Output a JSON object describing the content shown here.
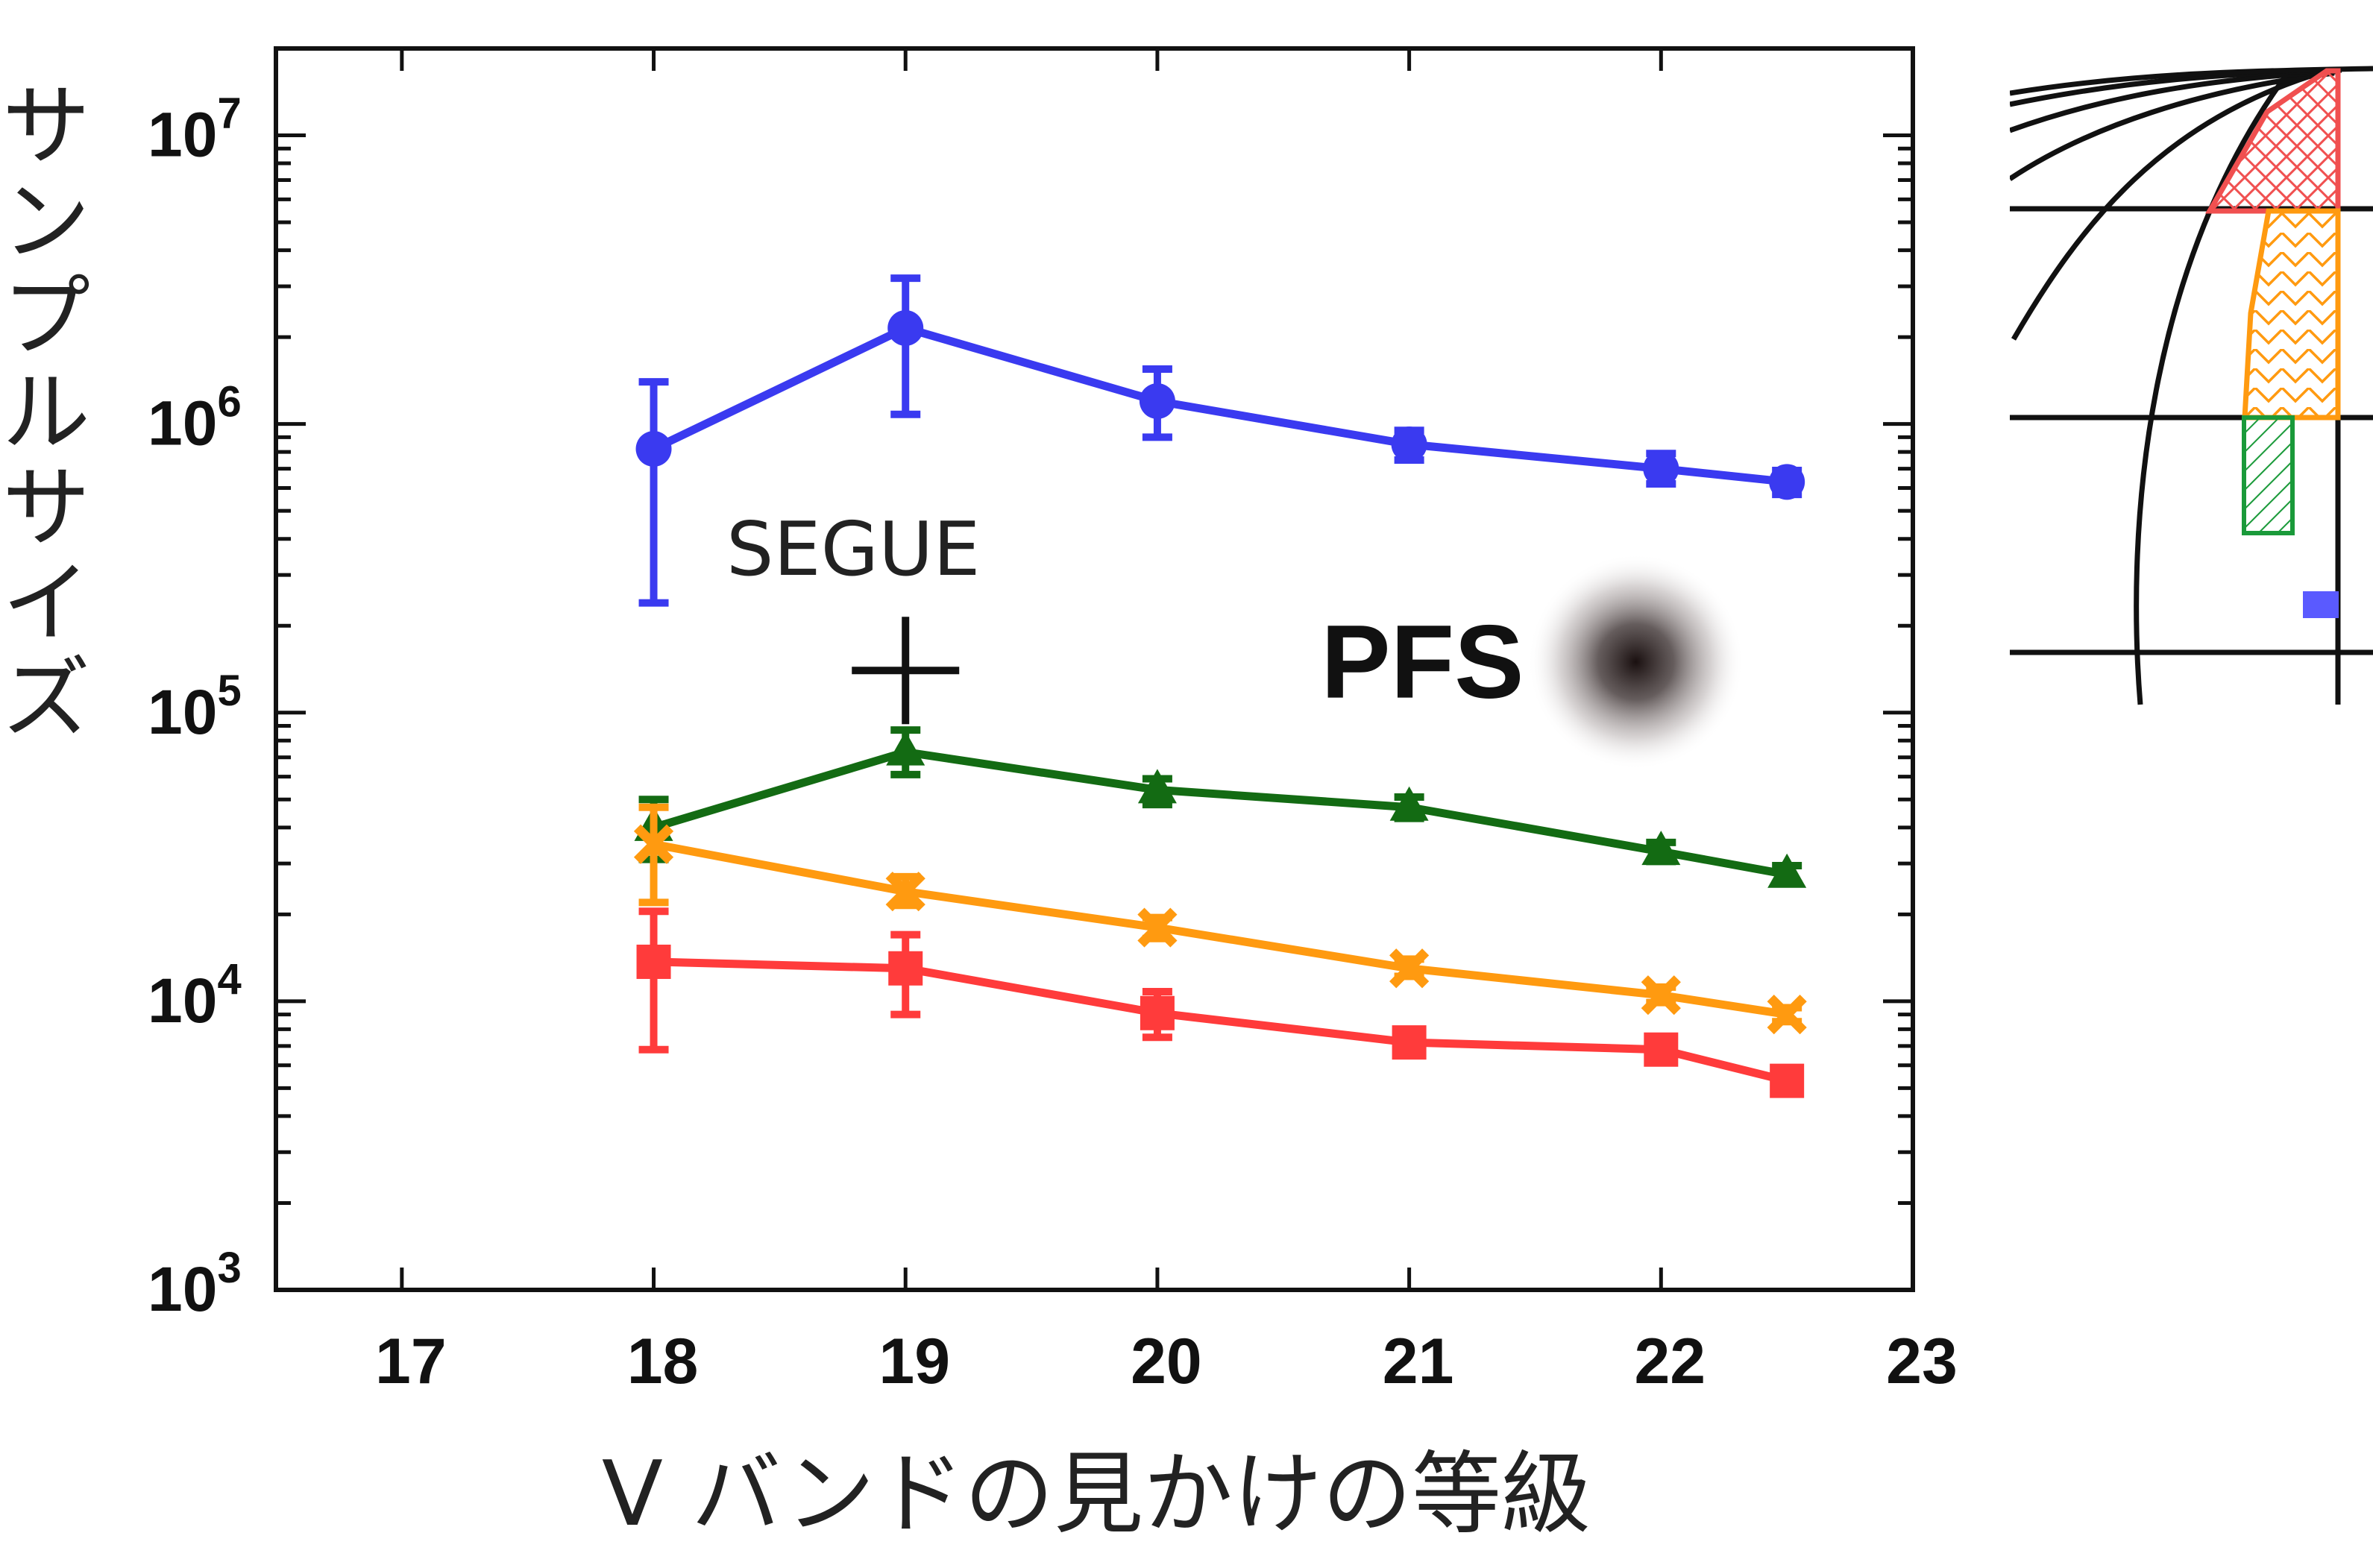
{
  "chart_data": {
    "type": "line",
    "xlabel": "V バンドの見かけの等級",
    "ylabel": "サンプルサイズ",
    "xlim": [
      16.5,
      23
    ],
    "ylim": [
      1000,
      20000000
    ],
    "yscale": "log",
    "x_ticks": [
      "17",
      "18",
      "19",
      "20",
      "21",
      "22",
      "23"
    ],
    "y_ticks": [
      {
        "base": "10",
        "exp": "3"
      },
      {
        "base": "10",
        "exp": "4"
      },
      {
        "base": "10",
        "exp": "5"
      },
      {
        "base": "10",
        "exp": "6"
      },
      {
        "base": "10",
        "exp": "7"
      }
    ],
    "grid": false,
    "series": [
      {
        "color": "#3a3af0",
        "marker": "circle",
        "x": [
          18,
          19,
          20,
          21,
          22,
          22.5
        ],
        "y": [
          820000,
          2150000,
          1200000,
          850000,
          700000,
          630000
        ],
        "yerr_low": [
          240000,
          1080000,
          900000,
          750000,
          620000,
          570000
        ],
        "yerr_high": [
          1400000,
          3200000,
          1550000,
          950000,
          790000,
          690000
        ]
      },
      {
        "color": "#136b13",
        "marker": "triangle",
        "x": [
          18,
          19,
          20,
          21,
          22,
          22.5
        ],
        "y": [
          40000,
          73000,
          54000,
          47000,
          33000,
          27500
        ],
        "yerr_low": [
          31000,
          61000,
          48000,
          43000,
          30500,
          25500
        ],
        "yerr_high": [
          50000,
          87000,
          59000,
          51000,
          35500,
          29500
        ]
      },
      {
        "color": "#ff9a10",
        "marker": "x",
        "x": [
          18,
          19,
          20,
          21,
          22,
          22.5
        ],
        "y": [
          35000,
          24000,
          18000,
          13000,
          10500,
          9000
        ],
        "yerr_low": [
          22000,
          21500,
          16500,
          12200,
          9900,
          8500
        ],
        "yerr_high": [
          47000,
          27000,
          19500,
          14000,
          11200,
          9500
        ]
      },
      {
        "color": "#ff3b3b",
        "marker": "square",
        "x": [
          18,
          19,
          20,
          21,
          22,
          22.5
        ],
        "y": [
          13700,
          13000,
          9100,
          7200,
          6800,
          5300
        ],
        "yerr_low": [
          6800,
          9000,
          7500,
          6600,
          6300,
          4950
        ],
        "yerr_high": [
          20500,
          17000,
          10800,
          7900,
          7300,
          5700
        ]
      }
    ],
    "annotations": [
      {
        "text": "SEGUE",
        "marker": "plus",
        "x": 19,
        "y": 140000
      },
      {
        "text": "PFS",
        "marker": "blurred-dot",
        "x": 21.9,
        "y": 150000
      }
    ]
  },
  "inset": {
    "description_colors": [
      "#f05050",
      "#ff9a10",
      "#1a9a3a",
      "#5a5aff"
    ]
  }
}
